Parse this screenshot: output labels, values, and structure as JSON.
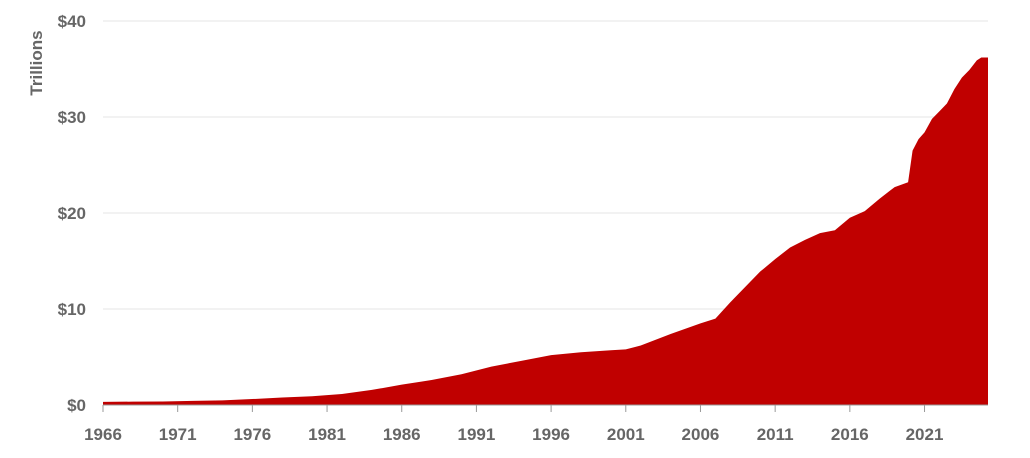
{
  "chart_data": {
    "type": "area",
    "title": "",
    "xlabel": "",
    "ylabel": "Trillions",
    "colors": {
      "area": "#C00000",
      "grid": "#e6e6e6",
      "text": "#666666"
    },
    "x_ticks": [
      "1966",
      "1971",
      "1976",
      "1981",
      "1986",
      "1991",
      "1996",
      "2001",
      "2006",
      "2011",
      "2016",
      "2021"
    ],
    "y_ticks": [
      "$0",
      "$10",
      "$20",
      "$30",
      "$40"
    ],
    "xlim": [
      1966,
      2025.25
    ],
    "ylim": [
      0,
      40
    ],
    "grid": true,
    "series": [
      {
        "x": [
          1966,
          1968,
          1970,
          1972,
          1974,
          1976,
          1978,
          1980,
          1982,
          1984,
          1986,
          1988,
          1990,
          1992,
          1994,
          1996,
          1998,
          2000,
          2001,
          2002,
          2004,
          2006,
          2007,
          2008,
          2009,
          2010,
          2011,
          2012,
          2013,
          2014,
          2015,
          2016,
          2017,
          2018,
          2019,
          2019.9,
          2020.2,
          2020.6,
          2021,
          2021.5,
          2022,
          2022.5,
          2023,
          2023.5,
          2024,
          2024.5,
          2024.8,
          2025.25
        ],
        "values": [
          0.32,
          0.35,
          0.37,
          0.43,
          0.48,
          0.62,
          0.78,
          0.91,
          1.14,
          1.57,
          2.12,
          2.6,
          3.2,
          4.0,
          4.6,
          5.2,
          5.5,
          5.7,
          5.8,
          6.2,
          7.4,
          8.5,
          9.0,
          10.7,
          12.3,
          13.9,
          15.2,
          16.4,
          17.2,
          17.9,
          18.2,
          19.5,
          20.2,
          21.5,
          22.7,
          23.2,
          26.5,
          27.7,
          28.4,
          29.8,
          30.6,
          31.4,
          32.9,
          34.1,
          34.9,
          35.9,
          36.2,
          36.2
        ]
      }
    ]
  }
}
